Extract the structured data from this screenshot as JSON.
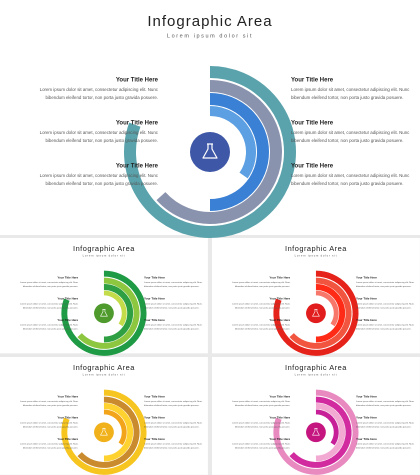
{
  "header": {
    "title": "Infographic Area",
    "subtitle": "Lorem ipsum dolor sit"
  },
  "items": [
    {
      "title": "Your Title Here",
      "lines": [
        "Lorem ipsum dolor sit amet, consectetur adipiscing elit. Nunc",
        "bibendum eleifend tortor, non porta justo gravida posuere."
      ]
    },
    {
      "title": "Your Title Here",
      "lines": [
        "Lorem ipsum dolor sit amet, consectetur adipiscing elit. Nunc",
        "bibendum eleifend tortor, non porta justo gravida posuere."
      ]
    },
    {
      "title": "Your Title Here",
      "lines": [
        "Lorem ipsum dolor sit amet, consectetur adipiscing elit. Nunc",
        "bibendum eleifend tortor, non porta justo gravida posuere."
      ]
    },
    {
      "title": "Your Title Here",
      "lines": [
        "Lorem ipsum dolor sit amet, consectetur adipiscing elit. Nunc",
        "bibendum eleifend tortor, non porta justo gravida posuere."
      ]
    },
    {
      "title": "Your Title Here",
      "lines": [
        "Lorem ipsum dolor sit amet, consectetur adipiscing elit. Nunc",
        "bibendum eleifend tortor, non porta justo gravida posuere."
      ]
    },
    {
      "title": "Your Title Here",
      "lines": [
        "Lorem ipsum dolor sit amet, consectetur adipiscing elit. Nunc",
        "bibendum eleifend tortor, non porta justo gravida posuere."
      ]
    }
  ]
}
